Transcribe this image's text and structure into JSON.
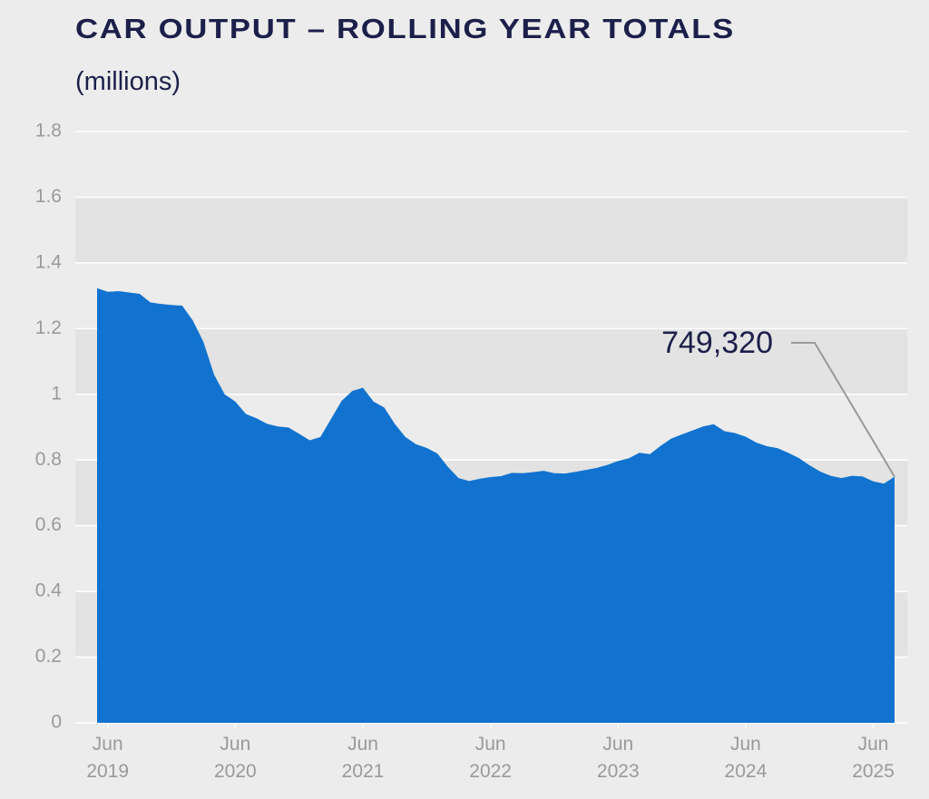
{
  "chart_data": {
    "type": "area",
    "title": "CAR OUTPUT – ROLLING YEAR TOTALS",
    "subtitle": "(millions)",
    "color": "#1173cf",
    "grid": true,
    "x": [
      "2019-05",
      "2019-06",
      "2019-07",
      "2019-08",
      "2019-09",
      "2019-10",
      "2019-11",
      "2019-12",
      "2020-01",
      "2020-02",
      "2020-03",
      "2020-04",
      "2020-05",
      "2020-06",
      "2020-07",
      "2020-08",
      "2020-09",
      "2020-10",
      "2020-11",
      "2020-12",
      "2021-01",
      "2021-02",
      "2021-03",
      "2021-04",
      "2021-05",
      "2021-06",
      "2021-07",
      "2021-08",
      "2021-09",
      "2021-10",
      "2021-11",
      "2021-12",
      "2022-01",
      "2022-02",
      "2022-03",
      "2022-04",
      "2022-05",
      "2022-06",
      "2022-07",
      "2022-08",
      "2022-09",
      "2022-10",
      "2022-11",
      "2022-12",
      "2023-01",
      "2023-02",
      "2023-03",
      "2023-04",
      "2023-05",
      "2023-06",
      "2023-07",
      "2023-08",
      "2023-09",
      "2023-10",
      "2023-11",
      "2023-12",
      "2024-01",
      "2024-02",
      "2024-03",
      "2024-04",
      "2024-05",
      "2024-06",
      "2024-07",
      "2024-08",
      "2024-09",
      "2024-10",
      "2024-11",
      "2024-12",
      "2025-01",
      "2025-02",
      "2025-03",
      "2025-04",
      "2025-05",
      "2025-06",
      "2025-07",
      "2025-08"
    ],
    "values": [
      1.323,
      1.312,
      1.314,
      1.31,
      1.306,
      1.28,
      1.275,
      1.272,
      1.27,
      1.225,
      1.16,
      1.06,
      1.0,
      0.978,
      0.94,
      0.927,
      0.91,
      0.902,
      0.899,
      0.88,
      0.86,
      0.87,
      0.925,
      0.98,
      1.01,
      1.02,
      0.978,
      0.96,
      0.91,
      0.87,
      0.848,
      0.837,
      0.82,
      0.779,
      0.745,
      0.736,
      0.743,
      0.748,
      0.751,
      0.761,
      0.76,
      0.763,
      0.767,
      0.76,
      0.759,
      0.764,
      0.77,
      0.776,
      0.785,
      0.797,
      0.805,
      0.822,
      0.818,
      0.843,
      0.865,
      0.878,
      0.89,
      0.902,
      0.909,
      0.888,
      0.882,
      0.871,
      0.853,
      0.842,
      0.836,
      0.822,
      0.806,
      0.784,
      0.765,
      0.752,
      0.745,
      0.752,
      0.75,
      0.735,
      0.728,
      0.74932
    ],
    "value_labels": [
      null,
      null,
      null,
      null,
      null,
      null,
      null,
      null,
      null,
      null,
      null,
      null,
      null,
      null,
      null,
      null,
      null,
      null,
      null,
      null,
      null,
      null,
      null,
      null,
      null,
      null,
      null,
      null,
      null,
      null,
      null,
      null,
      null,
      null,
      null,
      null,
      null,
      null,
      null,
      null,
      null,
      null,
      null,
      null,
      null,
      null,
      null,
      null,
      null,
      null,
      null,
      null,
      null,
      null,
      null,
      null,
      null,
      null,
      null,
      null,
      null,
      null,
      null,
      null,
      null,
      null,
      null,
      null,
      null,
      null,
      null,
      null,
      null,
      null,
      null,
      "749,320"
    ],
    "xlim": [
      "2019-05",
      "2025-08"
    ],
    "xticks": [
      {
        "value": "2019-06",
        "label": "Jun 2019"
      },
      {
        "value": "2020-06",
        "label": "Jun 2020"
      },
      {
        "value": "2021-06",
        "label": "Jun 2021"
      },
      {
        "value": "2022-06",
        "label": "Jun 2022"
      },
      {
        "value": "2023-06",
        "label": "Jun 2023"
      },
      {
        "value": "2024-06",
        "label": "Jun 2024"
      },
      {
        "value": "2025-06",
        "label": "Jun 2025"
      }
    ],
    "ylim": [
      0,
      1.8
    ],
    "yticks": [
      0,
      0.2,
      0.4,
      0.6,
      0.8,
      1,
      1.2,
      1.4,
      1.6,
      1.8
    ]
  }
}
